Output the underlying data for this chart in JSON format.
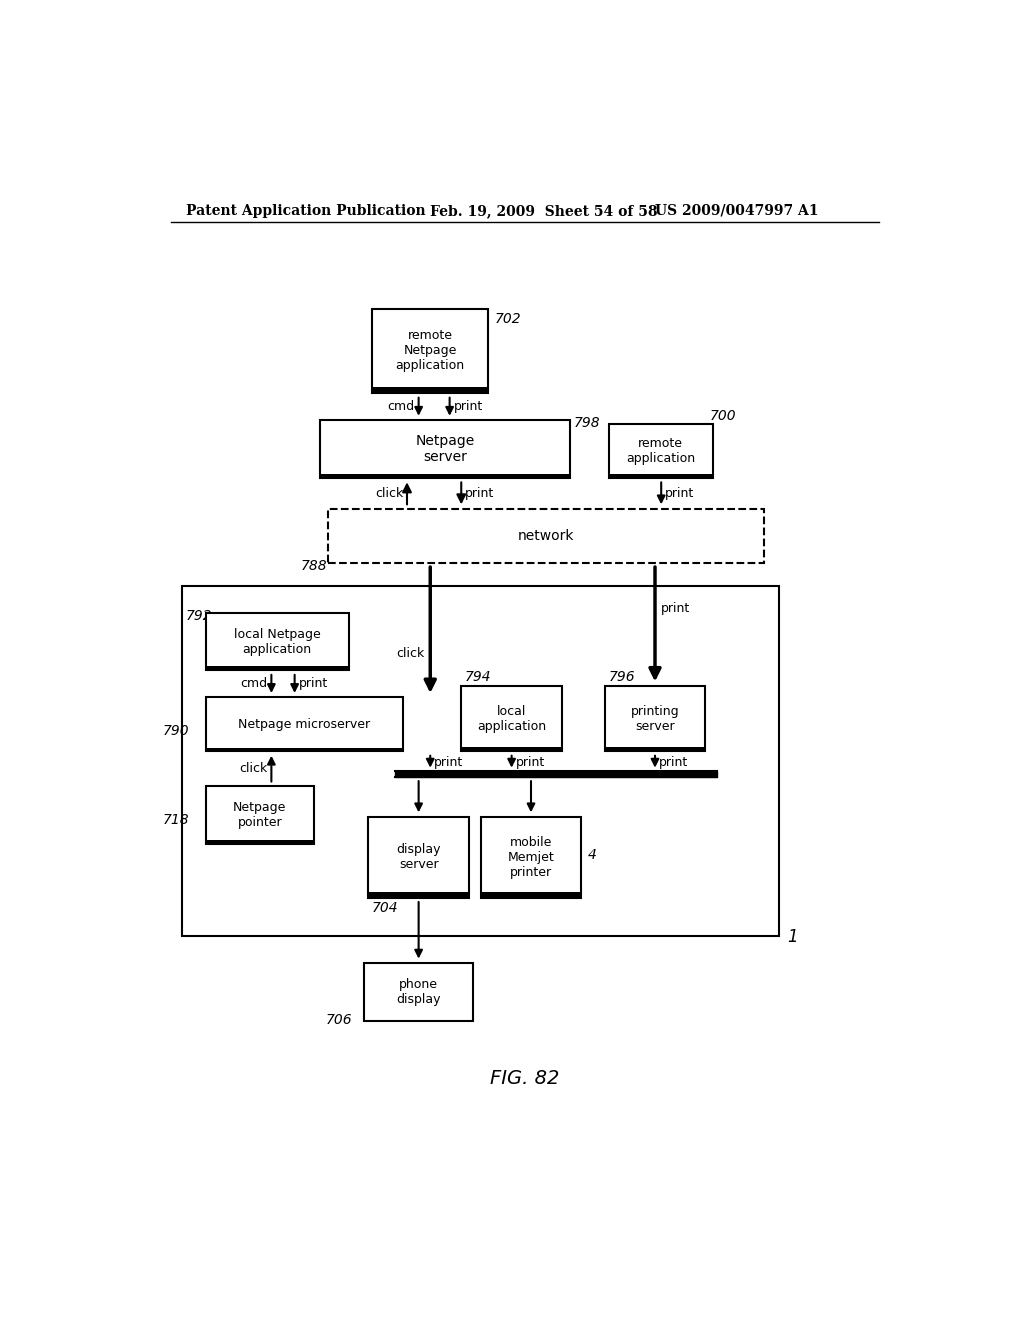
{
  "header_left": "Patent Application Publication",
  "header_mid": "Feb. 19, 2009  Sheet 54 of 58",
  "header_right": "US 2009/0047997 A1",
  "fig_label": "FIG. 82",
  "bg_color": "#ffffff"
}
